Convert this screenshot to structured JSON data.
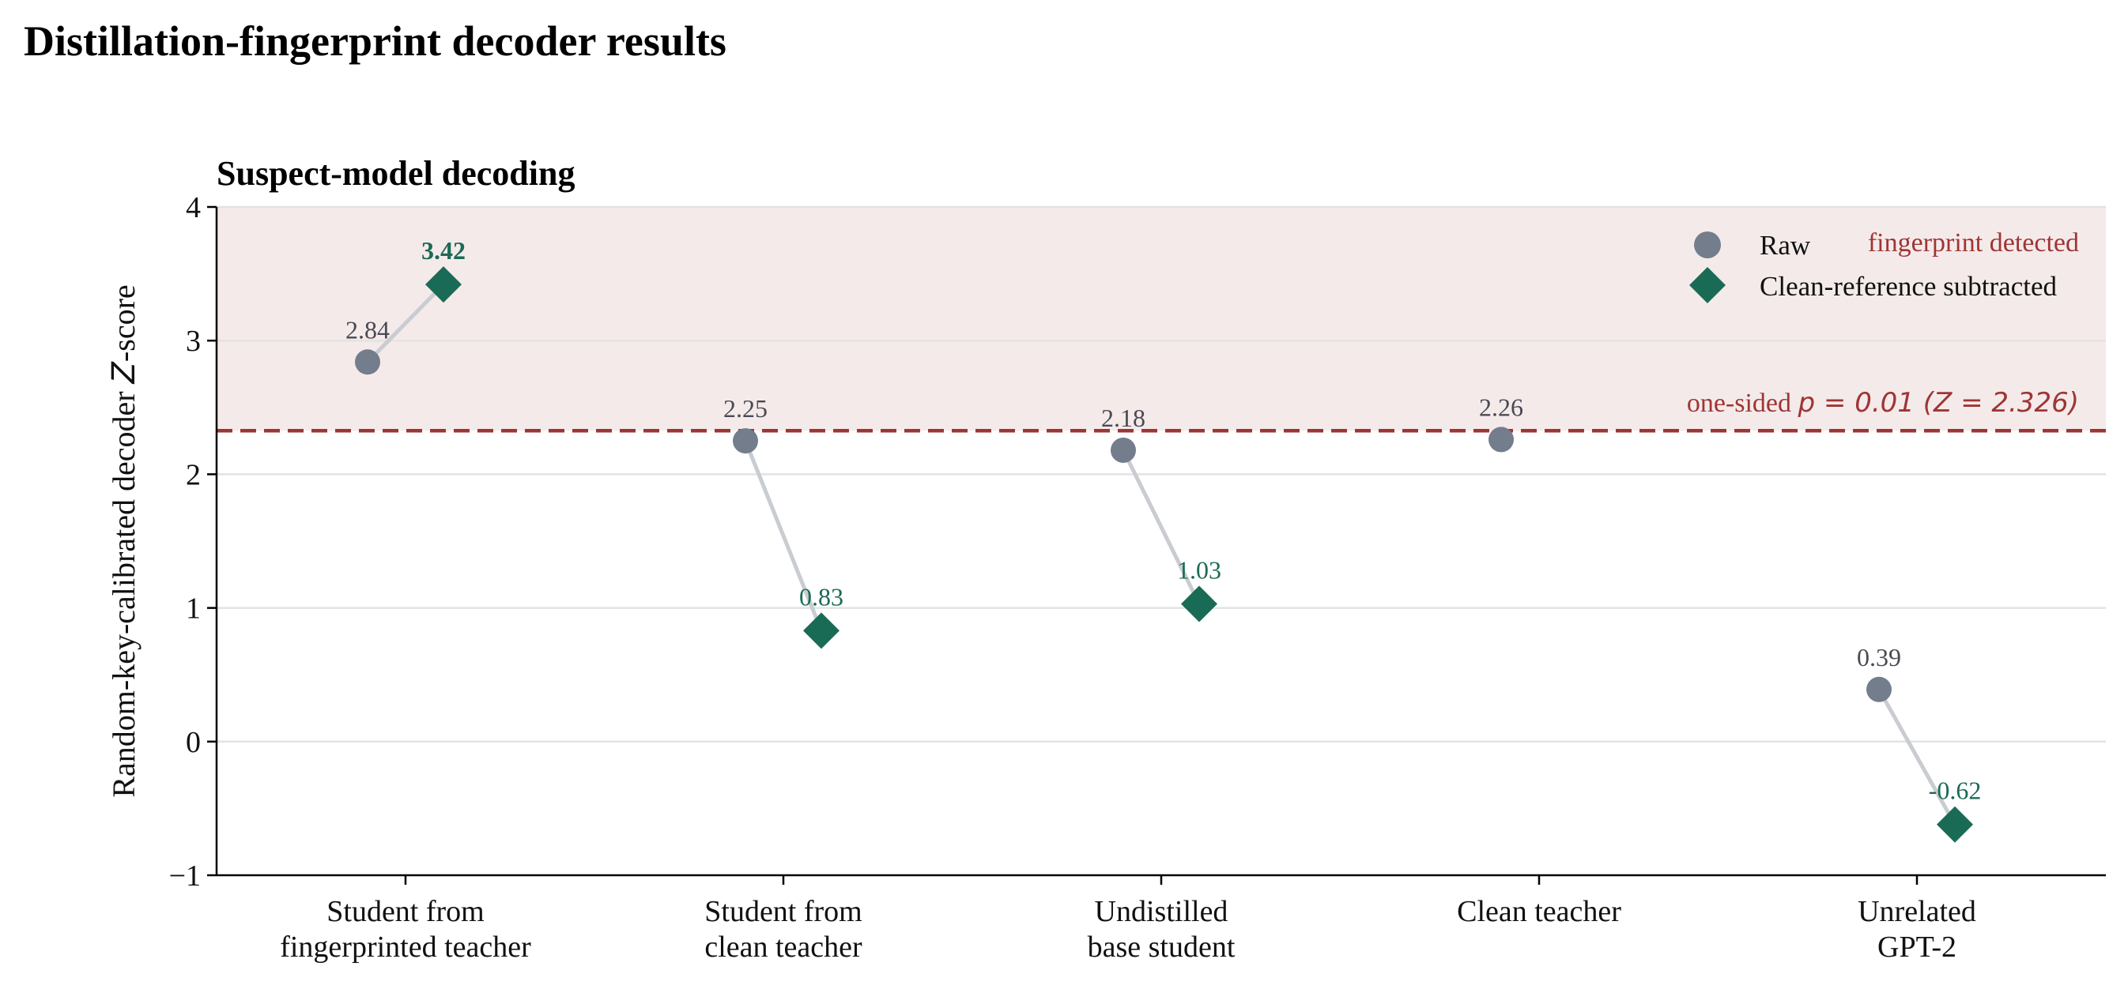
{
  "figure_title": "Distillation-fingerprint decoder results",
  "colors": {
    "raw": "#737d8c",
    "subtracted": "#1a6b55",
    "threshold": "#9e3535",
    "band": "#f5eaea",
    "connector": "#c9ccd1",
    "grid": "#e3e3e3"
  },
  "chart_data": {
    "type": "scatter",
    "title": "Suspect-model decoding",
    "xlabel": "",
    "ylabel": "Random-key-calibrated decoder Z-score",
    "ylim": [
      -1,
      4
    ],
    "yticks": [
      -1,
      0,
      1,
      2,
      3,
      4
    ],
    "ytick_labels": [
      "−1",
      "0",
      "1",
      "2",
      "3",
      "4"
    ],
    "grid": true,
    "legend_position": "top-right",
    "categories": [
      [
        "Student from",
        "fingerprinted teacher"
      ],
      [
        "Student from",
        "clean teacher"
      ],
      [
        "Undistilled",
        "base student"
      ],
      [
        "Clean teacher"
      ],
      [
        "Unrelated",
        "GPT-2"
      ]
    ],
    "series": [
      {
        "name": "Raw",
        "marker": "circle",
        "values": [
          2.84,
          2.25,
          2.18,
          2.26,
          0.39
        ],
        "labels": [
          "2.84",
          "2.25",
          "2.18",
          "2.26",
          "0.39"
        ]
      },
      {
        "name": "Clean-reference subtracted",
        "marker": "diamond",
        "values": [
          3.42,
          0.83,
          1.03,
          null,
          -0.62
        ],
        "labels": [
          "3.42",
          "0.83",
          "1.03",
          "",
          "-0.62"
        ]
      }
    ],
    "threshold": {
      "value": 2.326,
      "label_prefix": "one-sided ",
      "label_math": "p = 0.01 (Z = 2.326)"
    },
    "band": {
      "from": 2.326,
      "to": 4,
      "label": "fingerprint detected"
    }
  }
}
